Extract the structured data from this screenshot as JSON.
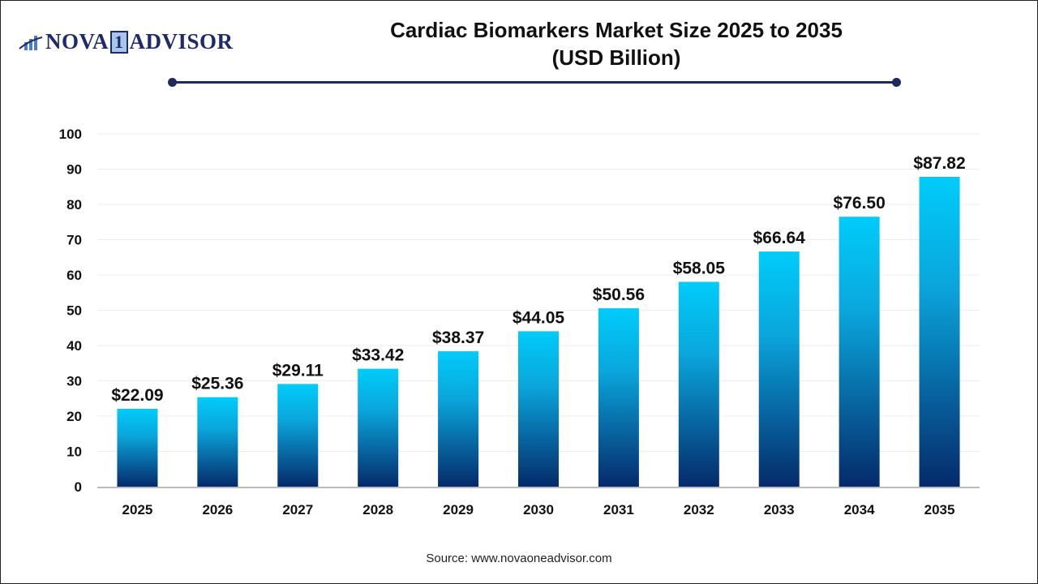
{
  "logo": {
    "text_left": "NOVA",
    "text_mid": "1",
    "text_right": "ADVISOR"
  },
  "source": "Source: www.novaoneadvisor.com",
  "colors": {
    "bar_top": "#00ccfa",
    "bar_bottom": "#052a6a",
    "accent": "#1d2a5b"
  },
  "chart_data": {
    "type": "bar",
    "title": "Cardiac Biomarkers Market Size 2025 to 2035",
    "subtitle": "(USD Billion)",
    "categories": [
      "2025",
      "2026",
      "2027",
      "2028",
      "2029",
      "2030",
      "2031",
      "2032",
      "2033",
      "2034",
      "2035"
    ],
    "values": [
      22.09,
      25.36,
      29.11,
      33.42,
      38.37,
      44.05,
      50.56,
      58.05,
      66.64,
      76.5,
      87.82
    ],
    "data_labels": [
      "$22.09",
      "$25.36",
      "$29.11",
      "$33.42",
      "$38.37",
      "$44.05",
      "$50.56",
      "$58.05",
      "$66.64",
      "$76.50",
      "$87.82"
    ],
    "yticks": [
      0,
      10,
      20,
      30,
      40,
      50,
      60,
      70,
      80,
      90,
      100
    ],
    "ylim": [
      0,
      100
    ],
    "xlabel": "",
    "ylabel": "",
    "grid": true
  }
}
